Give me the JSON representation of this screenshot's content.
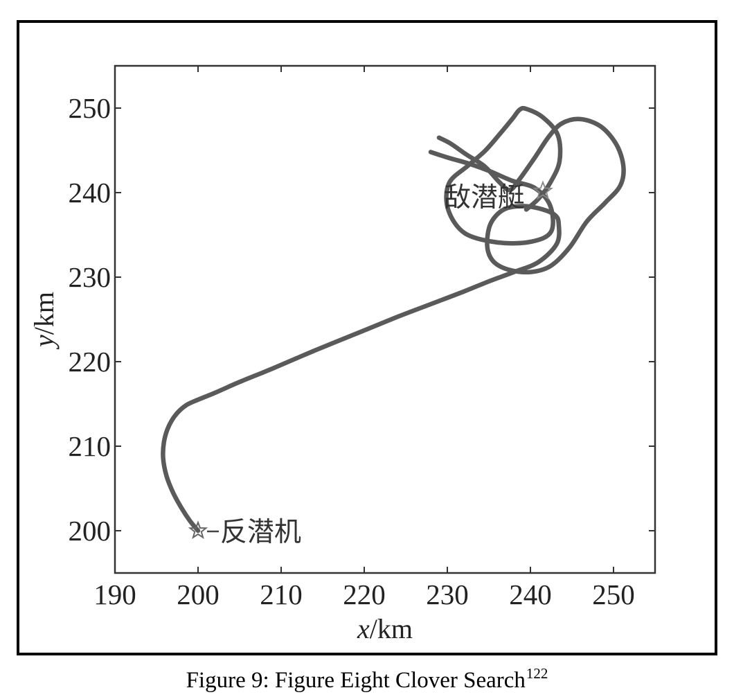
{
  "caption": {
    "text": "Figure 9: Figure Eight Clover Search",
    "ref": "122"
  },
  "chart_data": {
    "type": "line",
    "title": "",
    "xlabel_var": "x",
    "xlabel_unit": "/km",
    "ylabel_var": "y",
    "ylabel_unit": "/km",
    "xlim": [
      190,
      255
    ],
    "ylim": [
      195,
      255
    ],
    "xticks": [
      190,
      200,
      210,
      220,
      230,
      240,
      250
    ],
    "yticks": [
      200,
      210,
      220,
      230,
      240,
      250
    ],
    "grid": false,
    "series": [
      {
        "x": [
          200,
          199,
          198,
          197,
          196.2,
          195.8,
          195.9,
          196.4,
          197.3,
          198.5,
          200,
          202,
          205,
          209,
          214,
          219,
          224,
          228,
          232,
          235,
          238,
          241,
          243.2,
          243.4,
          243,
          241.5,
          239.2,
          236.8,
          235.2,
          234.8,
          235.5,
          237.3,
          239.9,
          242.4,
          244.7,
          246.8,
          249,
          250.8,
          251.2,
          250.4,
          248.5,
          246,
          243.8,
          242.2,
          240.5,
          238.7,
          237.5,
          236.2,
          234.5,
          232.3,
          230.4,
          229
        ],
        "y": [
          200,
          201.2,
          202.7,
          204.5,
          206.5,
          208.6,
          210.5,
          212.2,
          213.7,
          214.8,
          215.5,
          216.3,
          217.6,
          219.2,
          221.3,
          223.3,
          225.3,
          226.8,
          228.3,
          229.5,
          230.6,
          231.8,
          234,
          236.3,
          237.3,
          238,
          238.4,
          238,
          236.3,
          233.7,
          231.9,
          230.9,
          230.6,
          231.3,
          233.5,
          236.6,
          238.8,
          240.8,
          243,
          245.6,
          247.8,
          248.7,
          248.2,
          246.6,
          244.1,
          241.6,
          240.3,
          241.3,
          243.1,
          244.5,
          245.8,
          246.5
        ]
      },
      {
        "x": [
          228,
          230.2,
          232.7,
          235.2,
          237.8,
          240.6,
          242.4,
          242.5,
          240.1,
          236.1,
          232.1,
          230.1,
          230.2,
          232.5,
          234.5,
          236.2,
          237.8,
          238.7,
          239.5,
          241.5,
          243.3,
          243.5,
          242.4,
          241,
          239.5
        ],
        "y": [
          244.8,
          244.1,
          243.4,
          242.5,
          241.4,
          240.5,
          238.4,
          235.4,
          234.2,
          234.1,
          235.2,
          238,
          241.1,
          243.2,
          244.9,
          246.8,
          248.7,
          249.8,
          249.9,
          248.9,
          246.8,
          243.7,
          241.2,
          239.3,
          238
        ]
      }
    ],
    "annotations": [
      {
        "text": "敌潜艇",
        "x": 241,
        "y": 240.5,
        "marker": "star"
      },
      {
        "text": "反潜机",
        "x": 200,
        "y": 200,
        "marker": "star"
      }
    ]
  }
}
